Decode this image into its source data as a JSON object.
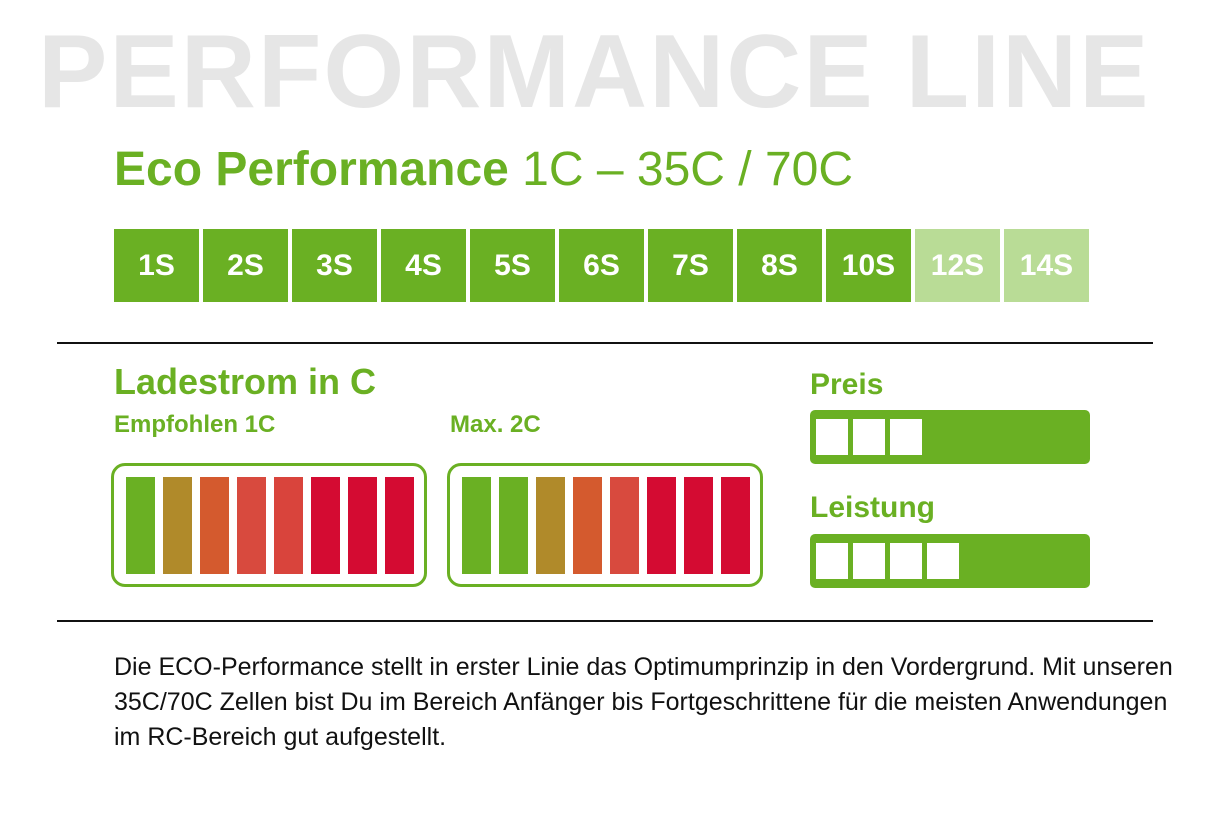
{
  "background_title": "PERFORMANCE LINE",
  "product": {
    "name": "Eco Performance",
    "spec": "1C – 35C / 70C"
  },
  "cell_counts": [
    {
      "label": "1S",
      "available": true
    },
    {
      "label": "2S",
      "available": true
    },
    {
      "label": "3S",
      "available": true
    },
    {
      "label": "4S",
      "available": true
    },
    {
      "label": "5S",
      "available": true
    },
    {
      "label": "6S",
      "available": true
    },
    {
      "label": "7S",
      "available": true
    },
    {
      "label": "8S",
      "available": true
    },
    {
      "label": "10S",
      "available": true
    },
    {
      "label": "12S",
      "available": false
    },
    {
      "label": "14S",
      "available": false
    }
  ],
  "charging": {
    "title": "Ladestrom in C",
    "recommended_label": "Empfohlen 1C",
    "max_label": "Max. 2C",
    "recommended_colors": [
      "#6ab023",
      "#b08a2a",
      "#d45a2e",
      "#d84a3e",
      "#d9443c",
      "#d40b32",
      "#d40b32",
      "#d40b32"
    ],
    "max_colors": [
      "#6ab023",
      "#6ab023",
      "#b08a2a",
      "#d45a2e",
      "#d84a3e",
      "#d40b32",
      "#d40b32",
      "#d40b32"
    ]
  },
  "ratings": {
    "price": {
      "label": "Preis",
      "level": 3
    },
    "performance": {
      "label": "Leistung",
      "level": 4
    }
  },
  "description": "Die ECO-Performance stellt in erster Linie das Optimumprinzip in den Vordergrund. Mit unseren 35C/70C Zellen bist Du im Bereich Anfänger bis Fortgeschrittene für die meisten Anwendungen im RC-Bereich gut aufgestellt.",
  "colors": {
    "brand_green": "#6ab023",
    "light_green": "#b9dc96"
  }
}
